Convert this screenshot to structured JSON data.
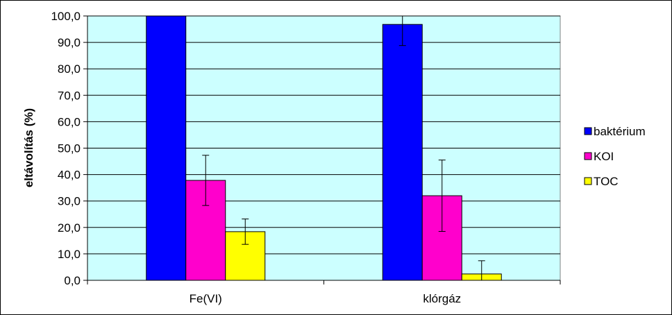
{
  "chart_data": {
    "type": "bar",
    "categories": [
      "Fe(VI)",
      "klórgáz"
    ],
    "series": [
      {
        "name": "baktérium",
        "values": [
          100.0,
          96.8
        ],
        "errors": [
          0.0,
          8.0
        ],
        "color": "#0000FF"
      },
      {
        "name": "KOI",
        "values": [
          37.8,
          32.0
        ],
        "errors": [
          9.5,
          13.5
        ],
        "color": "#FF00CC"
      },
      {
        "name": "TOC",
        "values": [
          18.4,
          2.4
        ],
        "errors": [
          4.8,
          5.0
        ],
        "color": "#FFFF00"
      }
    ],
    "ylabel": "eltávolítás (%)",
    "xlabel": "",
    "ylim": [
      0,
      100
    ],
    "yticks": [
      "0,0",
      "10,0",
      "20,0",
      "30,0",
      "40,0",
      "50,0",
      "60,0",
      "70,0",
      "80,0",
      "90,0",
      "100,0"
    ],
    "grid": true,
    "plot_background": "#CCFFFF",
    "legend_position": "right"
  }
}
